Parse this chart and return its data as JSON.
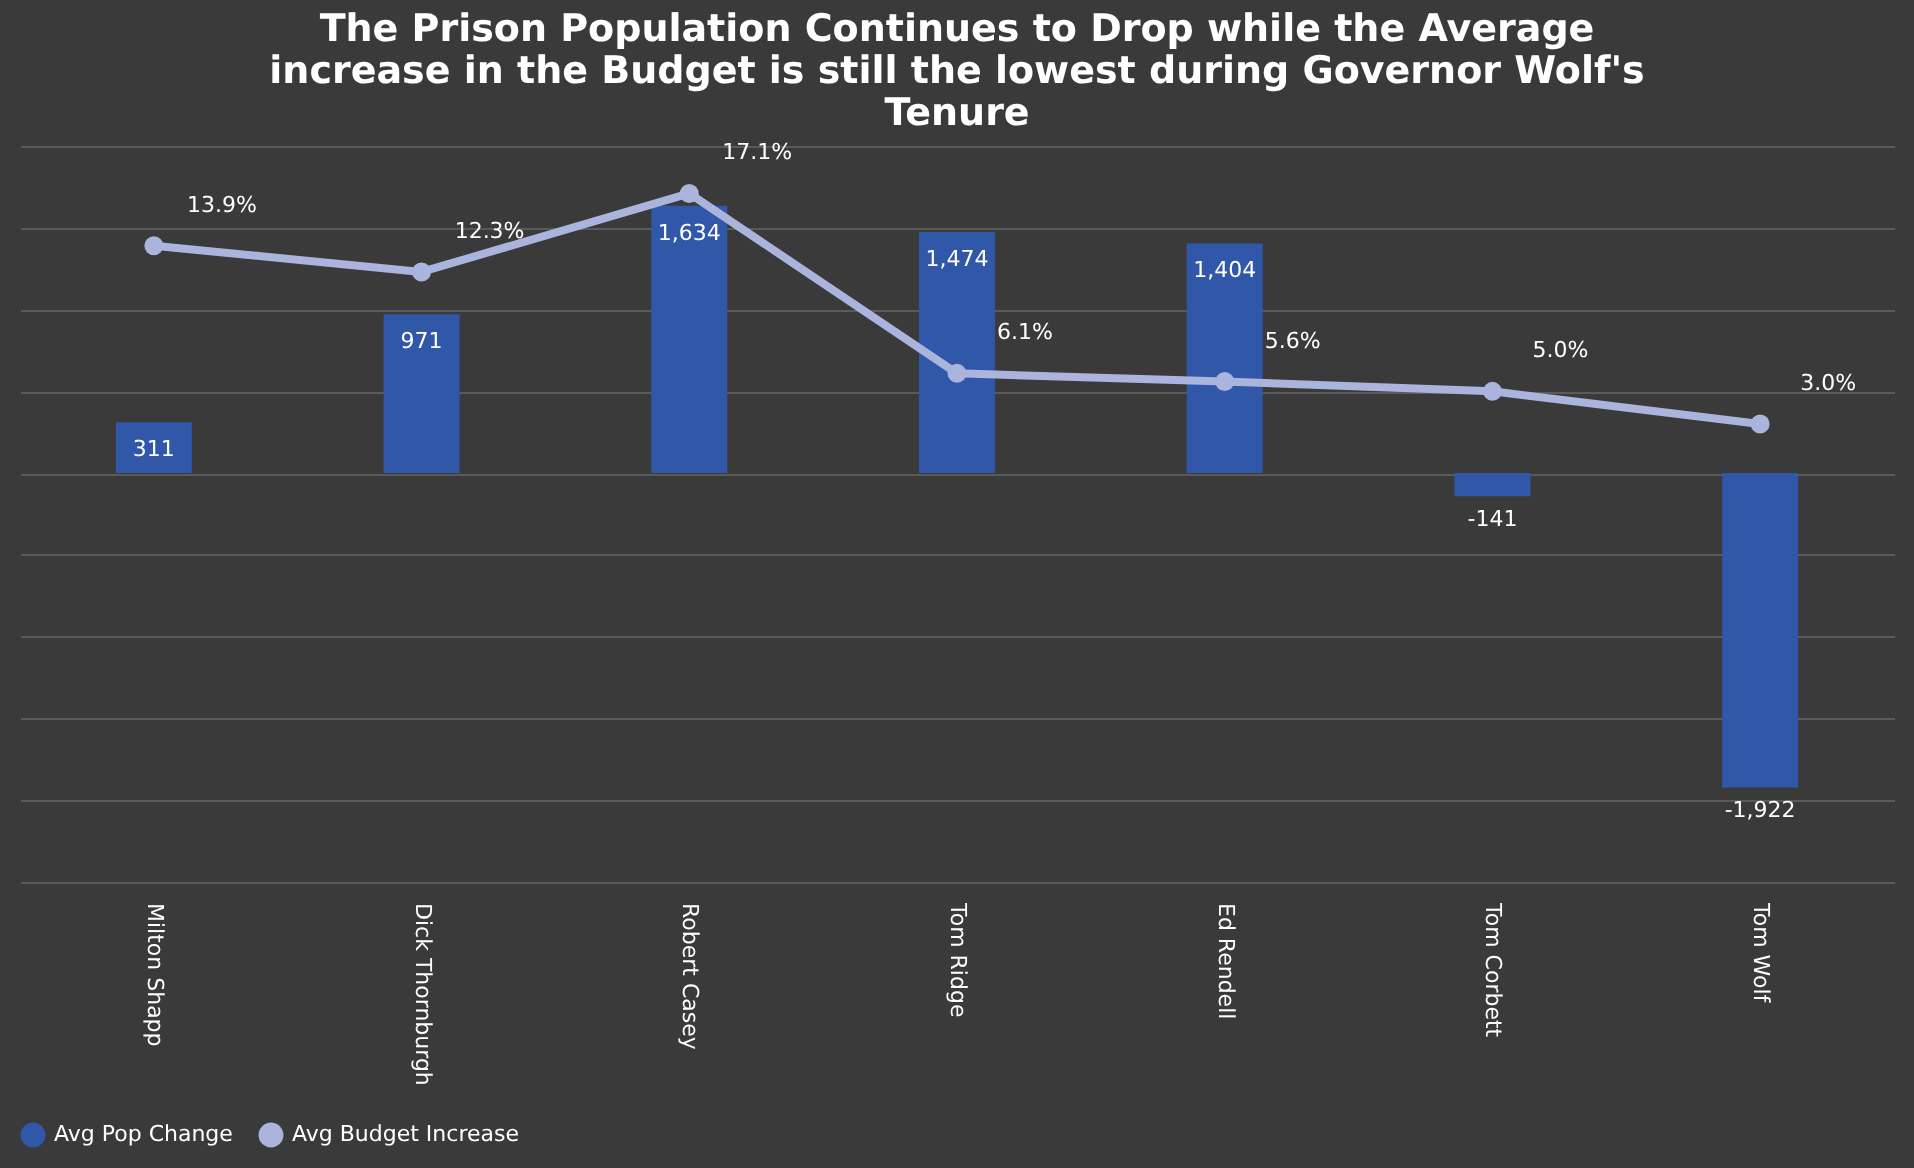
{
  "chart_data": {
    "type": "bar",
    "title": [
      "The Prison Population Continues to Drop while the Average",
      "increase in the Budget is still the lowest during Governor Wolf's",
      "Tenure"
    ],
    "categories": [
      "Milton Shapp",
      "Dick Thornburgh",
      "Robert Casey",
      "Tom Ridge",
      "Ed Rendell",
      "Tom Corbett",
      "Tom Wolf"
    ],
    "series": [
      {
        "name": "Avg Pop Change",
        "color": "#3157a8",
        "values": [
          311,
          971,
          1634,
          1474,
          1404,
          -141,
          -1922
        ],
        "value_labels": [
          "311",
          "971",
          "1,634",
          "1,474",
          "1,404",
          "-141",
          "-1,922"
        ]
      },
      {
        "name": "Avg Budget Increase",
        "type": "line",
        "axis": "y2",
        "color": "#aab4dd",
        "values": [
          13.9,
          12.3,
          17.1,
          6.1,
          5.6,
          5.0,
          3.0
        ],
        "value_labels": [
          "13.9%",
          "12.3%",
          "17.1%",
          "6.1%",
          "5.6%",
          "5.0%",
          "3.0%"
        ]
      }
    ],
    "ylim": [
      -2500,
      2000
    ],
    "yticks": [
      {
        "value": -2500,
        "label": null
      },
      {
        "value": -2000,
        "label": null
      },
      {
        "value": -1500,
        "label": null
      },
      {
        "value": -1000,
        "label": null
      },
      {
        "value": -500,
        "label": null
      },
      {
        "value": 0,
        "label": null
      },
      {
        "value": 500,
        "label": null
      },
      {
        "value": 1000,
        "label": null
      },
      {
        "value": 1500,
        "label": null
      },
      {
        "value": 2000,
        "label": null
      }
    ],
    "y2lim": [
      -25,
      20
    ],
    "y2ticks": [
      {
        "value": -25,
        "label": null
      },
      {
        "value": -20,
        "label": null
      },
      {
        "value": -15,
        "label": null
      },
      {
        "value": -10,
        "label": null
      },
      {
        "value": -5,
        "label": null
      },
      {
        "value": 0,
        "label": null
      },
      {
        "value": 5,
        "label": null
      },
      {
        "value": 10,
        "label": null
      },
      {
        "value": 15,
        "label": null
      },
      {
        "value": 20,
        "label": null
      }
    ],
    "tick_labels": "x",
    "grid": "y",
    "legend": "bottom",
    "marker": "circle",
    "line_style": "solid"
  }
}
